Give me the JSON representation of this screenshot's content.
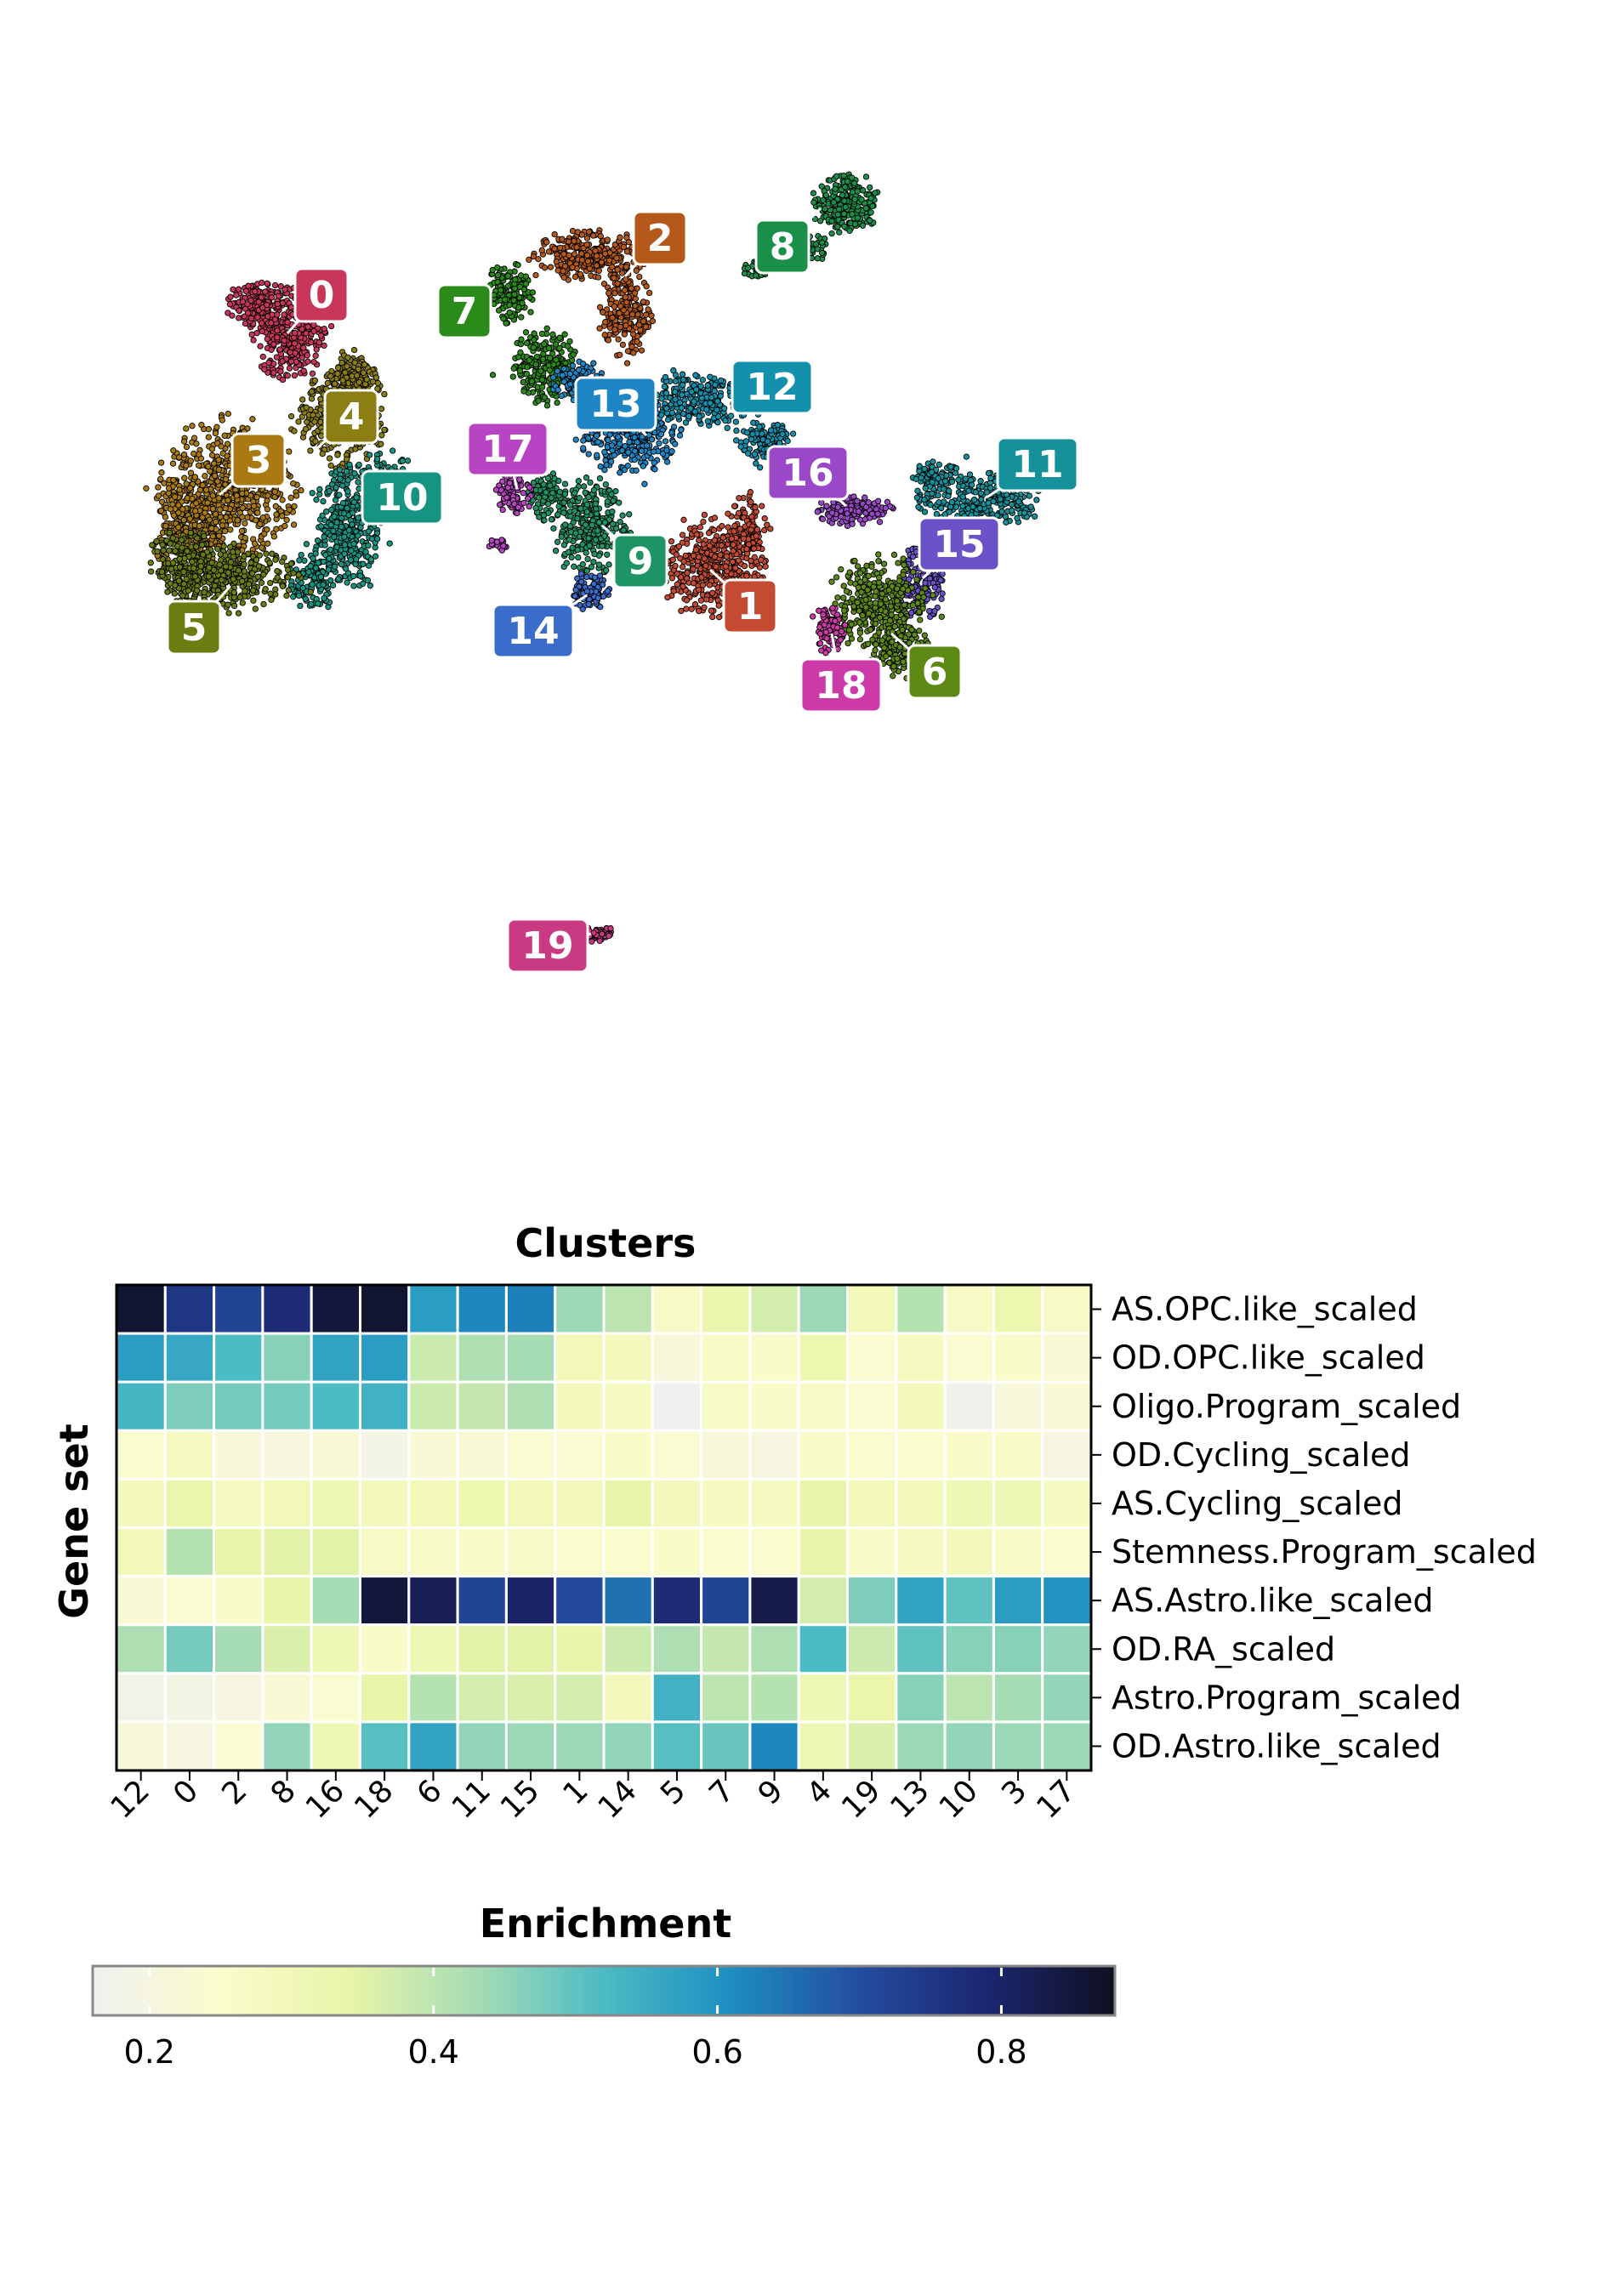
{
  "chart_data": [
    {
      "type": "scatter",
      "title": "",
      "xlabel": "",
      "ylabel": "",
      "clusters": [
        {
          "label": "0",
          "color": "#c8375a"
        },
        {
          "label": "1",
          "color": "#c44a32"
        },
        {
          "label": "2",
          "color": "#b5591a"
        },
        {
          "label": "3",
          "color": "#aa7a12"
        },
        {
          "label": "4",
          "color": "#8c7e12"
        },
        {
          "label": "5",
          "color": "#6b7c10"
        },
        {
          "label": "6",
          "color": "#5c8a14"
        },
        {
          "label": "7",
          "color": "#2a8a1a"
        },
        {
          "label": "8",
          "color": "#1a8f4a"
        },
        {
          "label": "9",
          "color": "#1e9464"
        },
        {
          "label": "10",
          "color": "#169482"
        },
        {
          "label": "11",
          "color": "#14919a"
        },
        {
          "label": "12",
          "color": "#1390ac"
        },
        {
          "label": "13",
          "color": "#1f86c6"
        },
        {
          "label": "14",
          "color": "#3a6ccc"
        },
        {
          "label": "15",
          "color": "#6a52c8"
        },
        {
          "label": "16",
          "color": "#9a48c8"
        },
        {
          "label": "17",
          "color": "#b745c3"
        },
        {
          "label": "18",
          "color": "#cb3aa6"
        },
        {
          "label": "19",
          "color": "#c93a82"
        }
      ]
    },
    {
      "type": "heatmap",
      "title": "Clusters",
      "xlabel": "",
      "ylabel": "Gene set",
      "x_categories": [
        "12",
        "0",
        "2",
        "8",
        "16",
        "18",
        "6",
        "11",
        "15",
        "1",
        "14",
        "5",
        "7",
        "9",
        "4",
        "19",
        "13",
        "10",
        "3",
        "17"
      ],
      "y_categories": [
        "AS.OPC.like_scaled",
        "OD.OPC.like_scaled",
        "Oligo.Program_scaled",
        "OD.Cycling_scaled",
        "AS.Cycling_scaled",
        "Stemness.Program_scaled",
        "AS.Astro.like_scaled",
        "OD.RA_scaled",
        "Astro.Program_scaled",
        "OD.Astro.like_scaled"
      ],
      "values": [
        [
          0.86,
          0.75,
          0.72,
          0.78,
          0.85,
          0.86,
          0.58,
          0.62,
          0.63,
          0.44,
          0.4,
          0.27,
          0.33,
          0.37,
          0.44,
          0.3,
          0.41,
          0.27,
          0.32,
          0.27
        ],
        [
          0.58,
          0.56,
          0.52,
          0.46,
          0.57,
          0.58,
          0.38,
          0.42,
          0.43,
          0.3,
          0.29,
          0.22,
          0.27,
          0.26,
          0.32,
          0.24,
          0.28,
          0.24,
          0.26,
          0.23
        ],
        [
          0.53,
          0.47,
          0.48,
          0.48,
          0.52,
          0.54,
          0.38,
          0.39,
          0.42,
          0.29,
          0.28,
          0.16,
          0.27,
          0.26,
          0.27,
          0.24,
          0.29,
          0.17,
          0.22,
          0.23
        ],
        [
          0.25,
          0.28,
          0.22,
          0.21,
          0.23,
          0.19,
          0.23,
          0.23,
          0.24,
          0.24,
          0.26,
          0.24,
          0.22,
          0.2,
          0.26,
          0.25,
          0.25,
          0.26,
          0.26,
          0.2
        ],
        [
          0.29,
          0.33,
          0.28,
          0.3,
          0.31,
          0.29,
          0.3,
          0.32,
          0.3,
          0.29,
          0.34,
          0.29,
          0.28,
          0.28,
          0.34,
          0.3,
          0.29,
          0.31,
          0.31,
          0.28
        ],
        [
          0.3,
          0.41,
          0.34,
          0.35,
          0.35,
          0.27,
          0.27,
          0.26,
          0.27,
          0.25,
          0.25,
          0.26,
          0.25,
          0.25,
          0.34,
          0.26,
          0.28,
          0.29,
          0.26,
          0.25
        ],
        [
          0.23,
          0.24,
          0.26,
          0.34,
          0.43,
          0.85,
          0.82,
          0.72,
          0.8,
          0.71,
          0.65,
          0.78,
          0.72,
          0.83,
          0.37,
          0.47,
          0.57,
          0.5,
          0.58,
          0.6
        ],
        [
          0.42,
          0.48,
          0.43,
          0.36,
          0.31,
          0.26,
          0.31,
          0.35,
          0.35,
          0.34,
          0.38,
          0.42,
          0.39,
          0.42,
          0.52,
          0.38,
          0.5,
          0.46,
          0.46,
          0.45
        ],
        [
          0.18,
          0.19,
          0.2,
          0.23,
          0.24,
          0.34,
          0.41,
          0.37,
          0.36,
          0.37,
          0.29,
          0.54,
          0.4,
          0.41,
          0.31,
          0.33,
          0.46,
          0.4,
          0.43,
          0.45
        ],
        [
          0.22,
          0.2,
          0.24,
          0.45,
          0.31,
          0.51,
          0.57,
          0.45,
          0.44,
          0.44,
          0.45,
          0.51,
          0.49,
          0.62,
          0.31,
          0.36,
          0.44,
          0.45,
          0.44,
          0.44
        ]
      ],
      "colorbar": {
        "title": "Enrichment",
        "range": [
          0.16,
          0.88
        ],
        "ticks": [
          "0.2",
          "0.4",
          "0.6",
          "0.8"
        ],
        "colormap": [
          "#f0f0f0",
          "#fbfccd",
          "#e9f5a8",
          "#a6dcb4",
          "#4bbbc4",
          "#1d8ec1",
          "#234da0",
          "#1c2670",
          "#0f1020"
        ]
      }
    }
  ]
}
